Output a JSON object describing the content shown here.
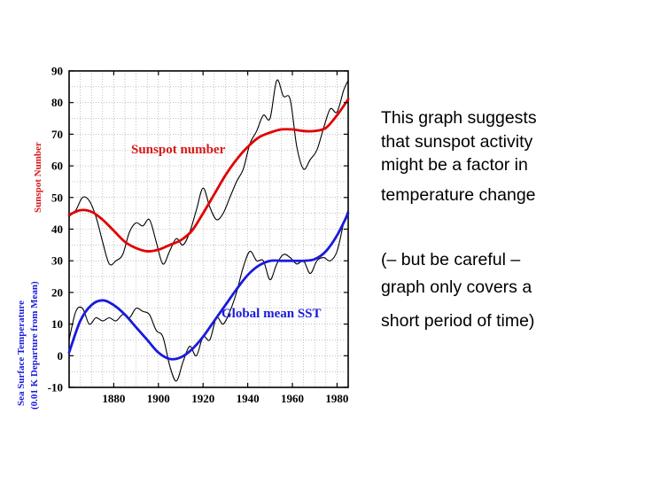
{
  "chart_data": {
    "type": "line",
    "xlim": [
      1860,
      1985
    ],
    "ylim": [
      -10,
      90
    ],
    "x_ticks": [
      1880,
      1900,
      1920,
      1940,
      1960,
      1980
    ],
    "y_ticks": [
      -10,
      0,
      10,
      20,
      30,
      40,
      50,
      60,
      70,
      80,
      90
    ],
    "grid": true,
    "y_label_top": "Sunspot Number",
    "y_label_bottom_line1": "Sea Surface Temperature",
    "y_label_bottom_line2": "(0.01 K Departure from Mean)",
    "series": [
      {
        "name": "Sunspot number",
        "color": "#e00000",
        "style": "smooth",
        "x": [
          1860,
          1865,
          1870,
          1875,
          1880,
          1885,
          1890,
          1895,
          1900,
          1905,
          1910,
          1915,
          1920,
          1925,
          1930,
          1935,
          1940,
          1945,
          1950,
          1955,
          1960,
          1965,
          1970,
          1975,
          1980,
          1985
        ],
        "y": [
          44.5,
          46,
          45.5,
          43,
          39.5,
          36,
          34,
          33,
          33.5,
          35,
          36.5,
          39.5,
          45,
          51,
          57,
          62,
          66,
          69,
          70.5,
          71.5,
          71.5,
          71,
          71,
          72,
          76,
          81
        ]
      },
      {
        "name": "Sunspot number (raw)",
        "color": "#000000",
        "style": "raw",
        "x": [
          1860,
          1863,
          1866,
          1869,
          1872,
          1875,
          1878,
          1881,
          1884,
          1887,
          1890,
          1893,
          1896,
          1899,
          1902,
          1905,
          1908,
          1911,
          1914,
          1917,
          1920,
          1923,
          1926,
          1929,
          1932,
          1935,
          1938,
          1941,
          1944,
          1947,
          1950,
          1953,
          1956,
          1959,
          1962,
          1965,
          1968,
          1971,
          1974,
          1977,
          1980,
          1983,
          1985
        ],
        "y": [
          44,
          46,
          50,
          49,
          44,
          36,
          29,
          30,
          32,
          39,
          42,
          41,
          43,
          36,
          29,
          33,
          37,
          35,
          39,
          46,
          53,
          47,
          43,
          45,
          50,
          55,
          59,
          67,
          71,
          76,
          75,
          87,
          82,
          81,
          66,
          59,
          62,
          65,
          72,
          78,
          77,
          84,
          87
        ]
      },
      {
        "name": "Global mean SST",
        "color": "#1a1adc",
        "style": "smooth",
        "x": [
          1860,
          1865,
          1870,
          1875,
          1880,
          1885,
          1890,
          1895,
          1900,
          1905,
          1910,
          1915,
          1920,
          1925,
          1930,
          1935,
          1940,
          1945,
          1950,
          1955,
          1960,
          1965,
          1970,
          1975,
          1980,
          1985
        ],
        "y": [
          1,
          11,
          16,
          17.5,
          16,
          13,
          9,
          5,
          1,
          -1,
          -0.5,
          2,
          6,
          11,
          16,
          21,
          25.5,
          28.5,
          30,
          30,
          30,
          30,
          30.5,
          33,
          38,
          45
        ]
      },
      {
        "name": "Global mean SST (raw)",
        "color": "#000000",
        "style": "raw",
        "x": [
          1860,
          1863,
          1866,
          1869,
          1872,
          1875,
          1878,
          1881,
          1884,
          1887,
          1890,
          1893,
          1896,
          1899,
          1902,
          1905,
          1908,
          1911,
          1914,
          1917,
          1920,
          1923,
          1926,
          1929,
          1932,
          1935,
          1938,
          1941,
          1944,
          1947,
          1950,
          1953,
          1956,
          1959,
          1962,
          1965,
          1968,
          1971,
          1974,
          1977,
          1980,
          1983,
          1985
        ],
        "y": [
          5,
          14,
          15,
          10,
          12,
          11,
          12,
          11,
          13,
          12,
          15,
          14,
          13,
          8,
          6,
          -3,
          -8,
          -2,
          3,
          0,
          6,
          5,
          12,
          10,
          14,
          20,
          28,
          33,
          30,
          30,
          24,
          29,
          32,
          31,
          29,
          30,
          26,
          30,
          31,
          30,
          33,
          42,
          46
        ]
      }
    ]
  },
  "text": {
    "note_line_1": "This graph suggests",
    "note_line_2": "that sunspot activity",
    "note_line_3": "might be a factor in",
    "note_line_4": "temperature change",
    "note_line_5": "(– but be careful –",
    "note_line_6": "graph only covers a",
    "note_line_7": "short period of time)"
  }
}
